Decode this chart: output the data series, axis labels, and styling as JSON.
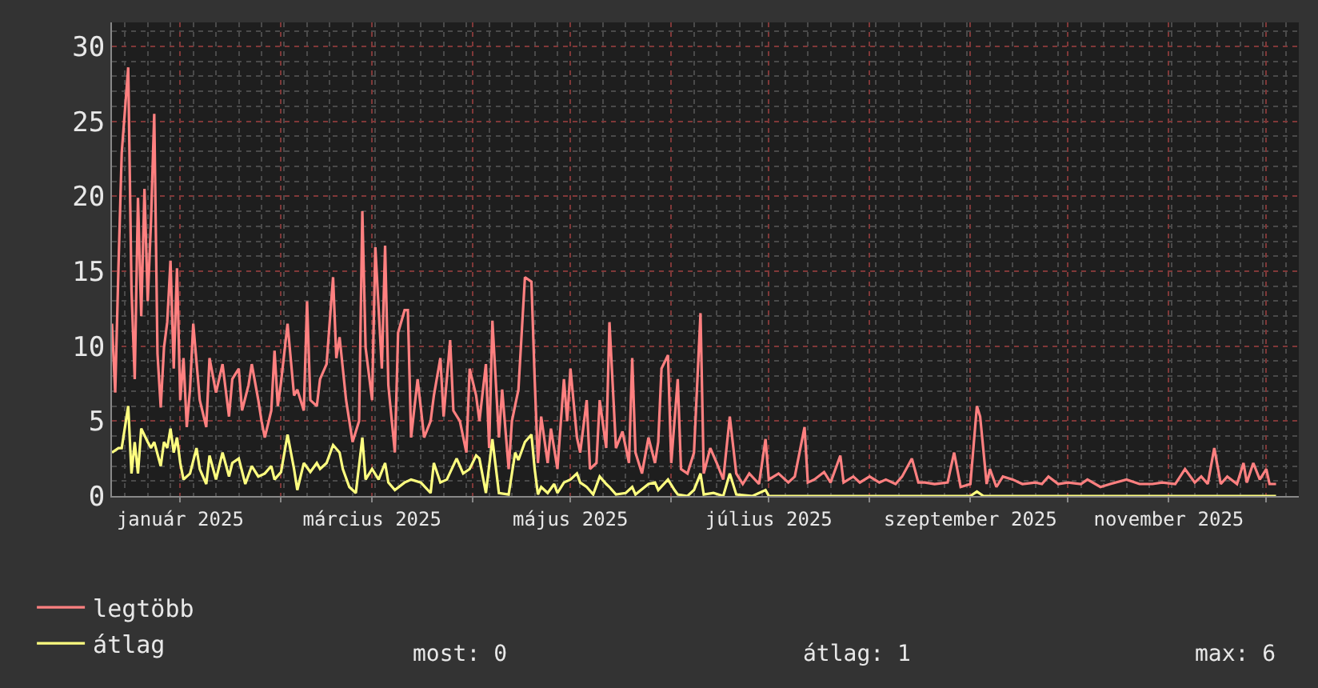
{
  "chart_data": {
    "type": "line",
    "xlim": [
      "2024-12-11",
      "2025-12-11"
    ],
    "xticks": [
      {
        "value": "2025-01-01",
        "label": "január 2025"
      },
      {
        "value": "2025-02-01",
        "label": null
      },
      {
        "value": "2025-03-01",
        "label": "március 2025"
      },
      {
        "value": "2025-04-01",
        "label": null
      },
      {
        "value": "2025-05-01",
        "label": "május 2025"
      },
      {
        "value": "2025-06-01",
        "label": null
      },
      {
        "value": "2025-07-01",
        "label": "július 2025"
      },
      {
        "value": "2025-08-01",
        "label": null
      },
      {
        "value": "2025-09-01",
        "label": "szeptember 2025"
      },
      {
        "value": "2025-10-01",
        "label": null
      },
      {
        "value": "2025-11-01",
        "label": "november 2025"
      },
      {
        "value": "2025-12-01",
        "label": null
      }
    ],
    "ylim": [
      0,
      31.6
    ],
    "yticks": [
      0,
      5,
      10,
      15,
      20,
      25,
      30
    ],
    "grid": true,
    "legend": "bottom left",
    "annotations": [
      "most: 0",
      "átlag: 1",
      "max: 6"
    ],
    "series": [
      {
        "name": "legtöbb",
        "color": "#ff8080",
        "x": [
          "2024-12-11",
          "2024-12-12",
          "2024-12-13",
          "2024-12-14",
          "2024-12-16",
          "2024-12-17",
          "2024-12-18",
          "2024-12-19",
          "2024-12-20",
          "2024-12-21",
          "2024-12-22",
          "2024-12-23",
          "2024-12-24",
          "2024-12-25",
          "2024-12-26",
          "2024-12-27",
          "2024-12-28",
          "2024-12-29",
          "2024-12-30",
          "2024-12-31",
          "2025-01-01",
          "2025-01-02",
          "2025-01-03",
          "2025-01-04",
          "2025-01-05",
          "2025-01-07",
          "2025-01-09",
          "2025-01-10",
          "2025-01-12",
          "2025-01-14",
          "2025-01-16",
          "2025-01-17",
          "2025-01-19",
          "2025-01-20",
          "2025-01-22",
          "2025-01-23",
          "2025-01-25",
          "2025-01-26",
          "2025-01-27",
          "2025-01-29",
          "2025-01-30",
          "2025-01-31",
          "2025-02-01",
          "2025-02-03",
          "2025-02-05",
          "2025-02-06",
          "2025-02-08",
          "2025-02-09",
          "2025-02-10",
          "2025-02-12",
          "2025-02-13",
          "2025-02-15",
          "2025-02-17",
          "2025-02-18",
          "2025-02-19",
          "2025-02-21",
          "2025-02-23",
          "2025-02-25",
          "2025-02-26",
          "2025-02-27",
          "2025-03-01",
          "2025-03-02",
          "2025-03-04",
          "2025-03-05",
          "2025-03-06",
          "2025-03-08",
          "2025-03-09",
          "2025-03-11",
          "2025-03-12",
          "2025-03-13",
          "2025-03-15",
          "2025-03-17",
          "2025-03-19",
          "2025-03-20",
          "2025-03-22",
          "2025-03-23",
          "2025-03-25",
          "2025-03-26",
          "2025-03-28",
          "2025-03-30",
          "2025-03-31",
          "2025-04-02",
          "2025-04-03",
          "2025-04-05",
          "2025-04-06",
          "2025-04-07",
          "2025-04-09",
          "2025-04-10",
          "2025-04-12",
          "2025-04-13",
          "2025-04-15",
          "2025-04-17",
          "2025-04-19",
          "2025-04-20",
          "2025-04-21",
          "2025-04-22",
          "2025-04-24",
          "2025-04-25",
          "2025-04-27",
          "2025-04-29",
          "2025-04-30",
          "2025-05-01",
          "2025-05-03",
          "2025-05-04",
          "2025-05-06",
          "2025-05-07",
          "2025-05-09",
          "2025-05-10",
          "2025-05-12",
          "2025-05-13",
          "2025-05-15",
          "2025-05-17",
          "2025-05-19",
          "2025-05-20",
          "2025-05-21",
          "2025-05-23",
          "2025-05-25",
          "2025-05-27",
          "2025-05-28",
          "2025-05-29",
          "2025-05-31",
          "2025-06-01",
          "2025-06-03",
          "2025-06-04",
          "2025-06-06",
          "2025-06-08",
          "2025-06-10",
          "2025-06-11",
          "2025-06-13",
          "2025-06-15",
          "2025-06-17",
          "2025-06-19",
          "2025-06-21",
          "2025-06-23",
          "2025-06-25",
          "2025-06-28",
          "2025-06-30",
          "2025-07-01",
          "2025-07-04",
          "2025-07-07",
          "2025-07-09",
          "2025-07-12",
          "2025-07-13",
          "2025-07-15",
          "2025-07-18",
          "2025-07-20",
          "2025-07-23",
          "2025-07-24",
          "2025-07-27",
          "2025-07-29",
          "2025-08-01",
          "2025-08-04",
          "2025-08-06",
          "2025-08-09",
          "2025-08-11",
          "2025-08-14",
          "2025-08-16",
          "2025-08-18",
          "2025-08-21",
          "2025-08-25",
          "2025-08-27",
          "2025-08-29",
          "2025-09-01",
          "2025-09-03",
          "2025-09-04",
          "2025-09-06",
          "2025-09-07",
          "2025-09-09",
          "2025-09-11",
          "2025-09-14",
          "2025-09-17",
          "2025-09-21",
          "2025-09-23",
          "2025-09-25",
          "2025-09-28",
          "2025-10-01",
          "2025-10-05",
          "2025-10-07",
          "2025-10-11",
          "2025-10-14",
          "2025-10-19",
          "2025-10-23",
          "2025-10-27",
          "2025-10-30",
          "2025-11-03",
          "2025-11-06",
          "2025-11-09",
          "2025-11-11",
          "2025-11-13",
          "2025-11-15",
          "2025-11-17",
          "2025-11-19",
          "2025-11-22",
          "2025-11-24",
          "2025-11-25",
          "2025-11-27",
          "2025-11-29",
          "2025-12-01",
          "2025-12-02",
          "2025-12-04"
        ],
        "values": [
          11.5,
          6.9,
          15.3,
          22.9,
          28.6,
          13.8,
          7.8,
          19.9,
          12,
          20.5,
          13,
          18.3,
          25.5,
          9.5,
          5.9,
          9.9,
          11.6,
          15.7,
          8.5,
          15.2,
          6.4,
          9.2,
          4.6,
          7.1,
          11.5,
          6.4,
          4.6,
          9.2,
          6.9,
          8.8,
          5.3,
          7.8,
          8.5,
          5.7,
          7.4,
          8.8,
          6.4,
          5,
          3.9,
          5.7,
          9.7,
          6,
          7.6,
          11.5,
          6.7,
          7.1,
          5.7,
          13,
          6.4,
          6,
          7.8,
          8.8,
          14.6,
          9.2,
          10.6,
          6.4,
          3.6,
          5,
          19,
          9.9,
          6.4,
          16.6,
          8.5,
          16.7,
          7.4,
          2.9,
          10.9,
          12.4,
          12.4,
          3.9,
          7.8,
          3.9,
          5,
          6.7,
          9.2,
          5.3,
          10.4,
          5.7,
          5,
          2.9,
          8.5,
          6.7,
          5,
          8.8,
          3.2,
          11.7,
          3.9,
          7.1,
          1.8,
          5,
          7.1,
          14.6,
          14.3,
          7.8,
          2.2,
          5.3,
          2.2,
          4.5,
          1.8,
          7.8,
          5,
          8.5,
          3.9,
          2.9,
          6.4,
          1.8,
          2.2,
          6.4,
          3.2,
          11.6,
          3.2,
          4.3,
          2.2,
          9.2,
          2.9,
          1.5,
          3.9,
          2.2,
          3.6,
          8.5,
          9.4,
          2.2,
          7.8,
          1.8,
          1.5,
          2.9,
          12.2,
          1.5,
          3.2,
          2.2,
          1.1,
          5.3,
          1.5,
          0.8,
          1.5,
          0.8,
          3.8,
          1.1,
          1.5,
          0.9,
          1.3,
          4.6,
          0.9,
          1.1,
          1.6,
          0.9,
          2.7,
          0.9,
          1.3,
          0.9,
          1.3,
          0.9,
          1.1,
          0.8,
          1.3,
          2.5,
          0.9,
          0.9,
          0.8,
          0.9,
          2.9,
          0.6,
          0.8,
          6,
          5.3,
          0.8,
          1.8,
          0.6,
          1.3,
          1.1,
          0.8,
          0.9,
          0.8,
          1.3,
          0.8,
          0.9,
          0.8,
          1.1,
          0.6,
          0.8,
          1.1,
          0.8,
          0.8,
          0.9,
          0.8,
          1.8,
          0.9,
          1.3,
          0.8,
          3.2,
          0.8,
          1.3,
          0.8,
          2.2,
          0.9,
          2.2,
          1.1,
          1.8,
          0.8,
          0.8
        ]
      },
      {
        "name": "átlag",
        "color": "#ffff80",
        "x": [
          "2024-12-11",
          "2024-12-13",
          "2024-12-14",
          "2024-12-16",
          "2024-12-17",
          "2024-12-18",
          "2024-12-19",
          "2024-12-20",
          "2024-12-22",
          "2024-12-23",
          "2024-12-24",
          "2024-12-26",
          "2024-12-27",
          "2024-12-28",
          "2024-12-29",
          "2024-12-30",
          "2024-12-31",
          "2025-01-01",
          "2025-01-02",
          "2025-01-04",
          "2025-01-06",
          "2025-01-07",
          "2025-01-09",
          "2025-01-10",
          "2025-01-12",
          "2025-01-14",
          "2025-01-16",
          "2025-01-17",
          "2025-01-19",
          "2025-01-21",
          "2025-01-23",
          "2025-01-25",
          "2025-01-27",
          "2025-01-29",
          "2025-01-30",
          "2025-02-01",
          "2025-02-03",
          "2025-02-05",
          "2025-02-06",
          "2025-02-08",
          "2025-02-10",
          "2025-02-12",
          "2025-02-13",
          "2025-02-15",
          "2025-02-17",
          "2025-02-19",
          "2025-02-20",
          "2025-02-22",
          "2025-02-24",
          "2025-02-26",
          "2025-02-27",
          "2025-03-01",
          "2025-03-03",
          "2025-03-05",
          "2025-03-06",
          "2025-03-08",
          "2025-03-11",
          "2025-03-13",
          "2025-03-16",
          "2025-03-19",
          "2025-03-20",
          "2025-03-22",
          "2025-03-24",
          "2025-03-27",
          "2025-03-29",
          "2025-03-31",
          "2025-04-02",
          "2025-04-03",
          "2025-04-05",
          "2025-04-07",
          "2025-04-08",
          "2025-04-09",
          "2025-04-12",
          "2025-04-14",
          "2025-04-15",
          "2025-04-17",
          "2025-04-19",
          "2025-04-20",
          "2025-04-21",
          "2025-04-22",
          "2025-04-24",
          "2025-04-26",
          "2025-04-27",
          "2025-04-29",
          "2025-05-01",
          "2025-05-03",
          "2025-05-04",
          "2025-05-06",
          "2025-05-08",
          "2025-05-10",
          "2025-05-12",
          "2025-05-13",
          "2025-05-15",
          "2025-05-18",
          "2025-05-20",
          "2025-05-21",
          "2025-05-25",
          "2025-05-27",
          "2025-05-28",
          "2025-05-31",
          "2025-06-02",
          "2025-06-03",
          "2025-06-06",
          "2025-06-08",
          "2025-06-10",
          "2025-06-11",
          "2025-06-14",
          "2025-06-17",
          "2025-06-19",
          "2025-06-21",
          "2025-06-26",
          "2025-06-30",
          "2025-07-01",
          "2025-07-15",
          "2025-08-01",
          "2025-09-01",
          "2025-09-03",
          "2025-09-05",
          "2025-10-15",
          "2025-12-04"
        ],
        "values": [
          2.9,
          3.2,
          3.2,
          6,
          1.5,
          3.6,
          1.5,
          4.5,
          3.6,
          3.2,
          3.6,
          2,
          3.6,
          3.2,
          4.5,
          2.9,
          3.9,
          2.2,
          1.1,
          1.5,
          3.2,
          1.8,
          0.8,
          2.7,
          1.1,
          2.9,
          1.3,
          2.2,
          2.5,
          0.8,
          2,
          1.3,
          1.5,
          2,
          1.1,
          1.6,
          4.1,
          1.8,
          0.4,
          2.2,
          1.6,
          2.2,
          1.8,
          2.2,
          3.4,
          2.9,
          1.8,
          0.6,
          0.2,
          3.9,
          1.1,
          1.8,
          1.1,
          2.2,
          0.9,
          0.4,
          0.9,
          1.1,
          0.9,
          0.2,
          2.2,
          0.9,
          1.1,
          2.5,
          1.5,
          1.8,
          2.7,
          2.5,
          0.2,
          3.8,
          2,
          0.2,
          0.1,
          2.9,
          2.4,
          3.6,
          4.1,
          1.8,
          0.1,
          0.6,
          0.2,
          0.8,
          0.2,
          0.9,
          1.1,
          1.5,
          0.9,
          0.6,
          0.1,
          1.3,
          0.8,
          0.6,
          0.1,
          0.2,
          0.6,
          0.1,
          0.8,
          0.9,
          0.4,
          1.1,
          0.4,
          0.1,
          0,
          0.4,
          1.5,
          0.1,
          0.2,
          0,
          1.5,
          0.1,
          0,
          0.4,
          0,
          0,
          0,
          0,
          0.3,
          0,
          0,
          0
        ]
      }
    ]
  }
}
